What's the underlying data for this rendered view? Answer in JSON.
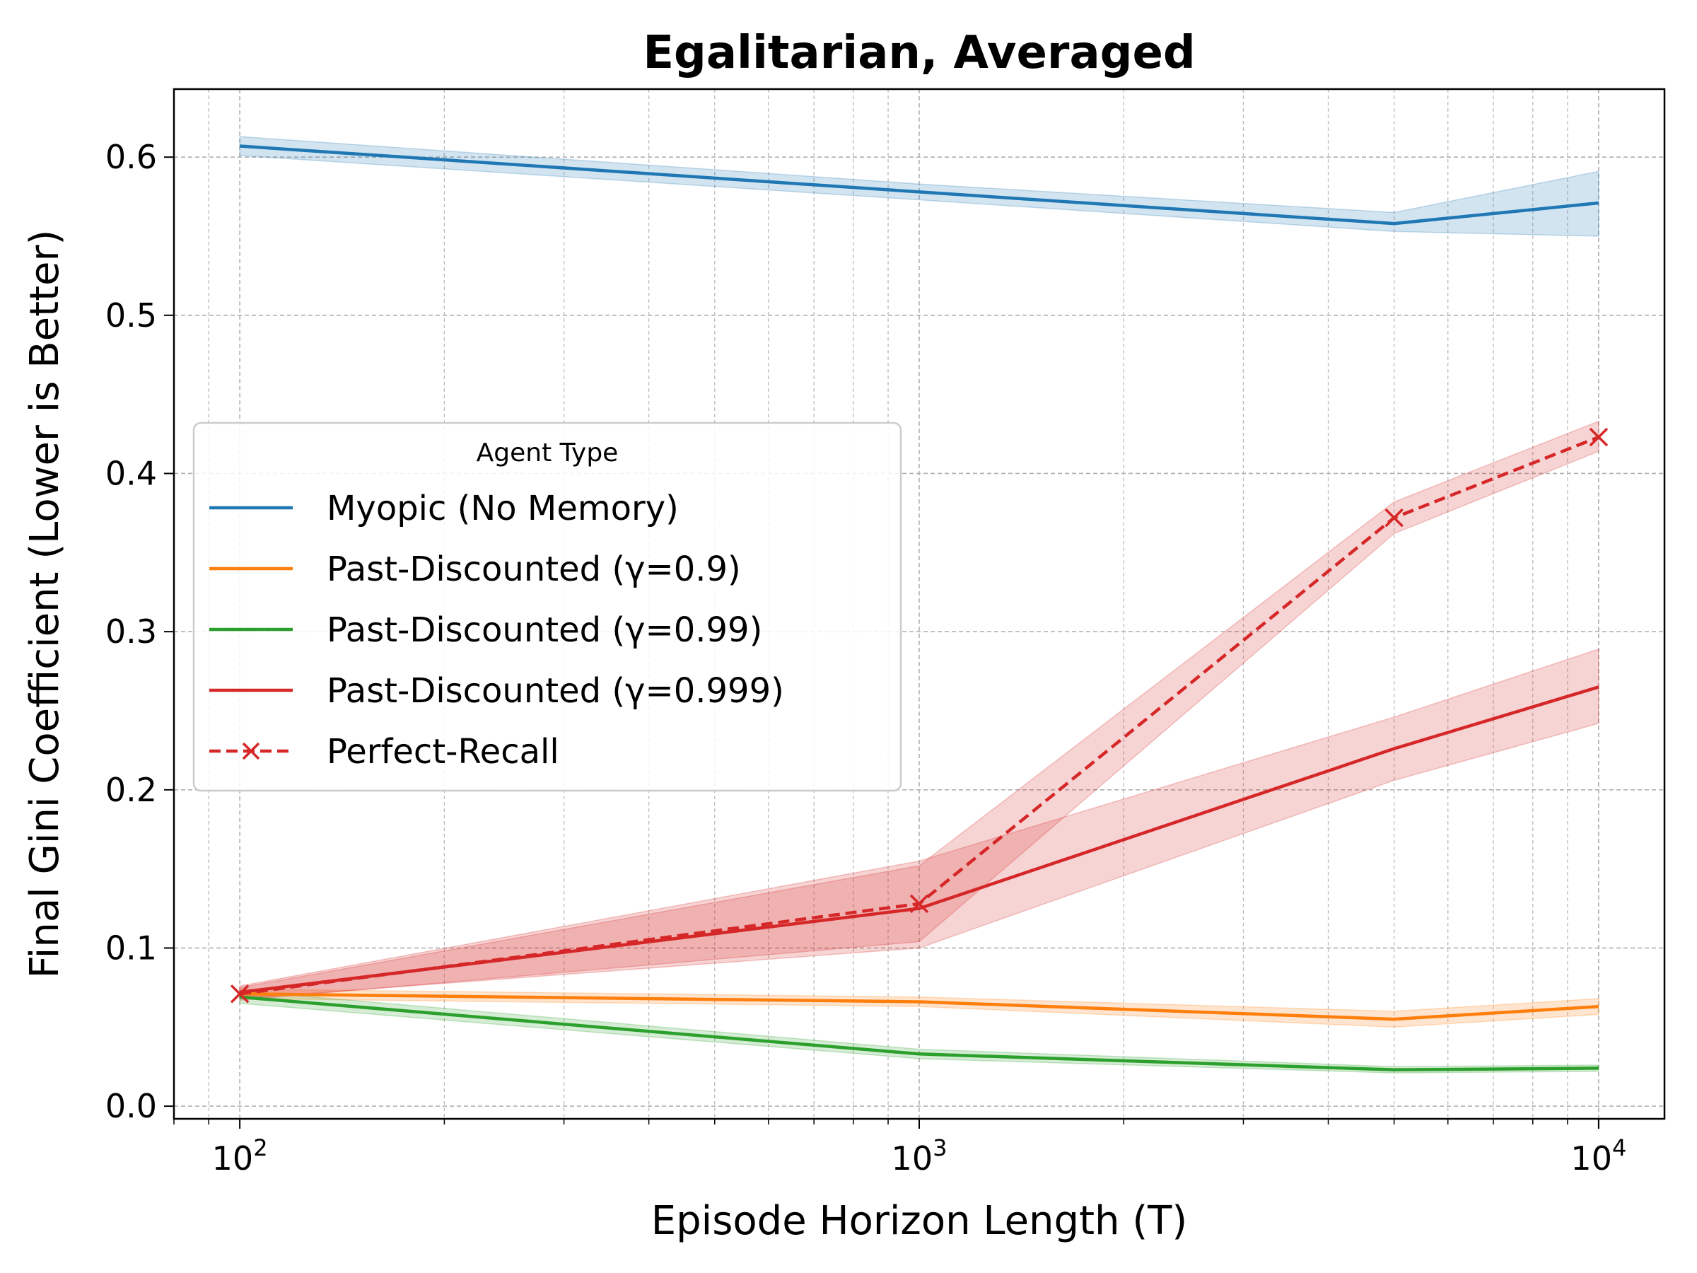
{
  "chart_data": {
    "type": "line",
    "title": "Egalitarian, Averaged",
    "xlabel": "Episode Horizon Length (T)",
    "ylabel": "Final Gini Coefficient (Lower is Better)",
    "xscale": "log",
    "xlim": [
      80,
      12500
    ],
    "ylim": [
      -0.008,
      0.643
    ],
    "x_ticks": [
      {
        "value": 100,
        "base": "10",
        "exp": "2"
      },
      {
        "value": 1000,
        "base": "10",
        "exp": "3"
      },
      {
        "value": 10000,
        "base": "10",
        "exp": "4"
      }
    ],
    "y_ticks": [
      {
        "value": 0.0,
        "label": "0.0"
      },
      {
        "value": 0.1,
        "label": "0.1"
      },
      {
        "value": 0.2,
        "label": "0.2"
      },
      {
        "value": 0.3,
        "label": "0.3"
      },
      {
        "value": 0.4,
        "label": "0.4"
      },
      {
        "value": 0.5,
        "label": "0.5"
      },
      {
        "value": 0.6,
        "label": "0.6"
      }
    ],
    "grid": true,
    "legend": {
      "title": "Agent Type",
      "position": "center-left"
    },
    "x": [
      100,
      1000,
      5000,
      10000
    ],
    "series": [
      {
        "name": "Myopic (No Memory)",
        "color": "#1f77b4",
        "dashed": false,
        "marker": "none",
        "values": [
          0.607,
          0.578,
          0.558,
          0.571
        ],
        "lower": [
          0.601,
          0.573,
          0.553,
          0.55
        ],
        "upper": [
          0.613,
          0.583,
          0.565,
          0.591
        ]
      },
      {
        "name": "Past-Discounted (γ=0.9)",
        "color": "#ff7f0e",
        "dashed": false,
        "marker": "none",
        "values": [
          0.071,
          0.066,
          0.055,
          0.063
        ],
        "lower": [
          0.068,
          0.063,
          0.05,
          0.058
        ],
        "upper": [
          0.074,
          0.069,
          0.06,
          0.068
        ]
      },
      {
        "name": "Past-Discounted (γ=0.99)",
        "color": "#2ca02c",
        "dashed": false,
        "marker": "none",
        "values": [
          0.069,
          0.033,
          0.023,
          0.024
        ],
        "lower": [
          0.065,
          0.03,
          0.021,
          0.022
        ],
        "upper": [
          0.073,
          0.036,
          0.025,
          0.026
        ]
      },
      {
        "name": "Past-Discounted (γ=0.999)",
        "color": "#d62728",
        "dashed": false,
        "marker": "none",
        "values": [
          0.072,
          0.125,
          0.226,
          0.265
        ],
        "lower": [
          0.068,
          0.1,
          0.206,
          0.242
        ],
        "upper": [
          0.076,
          0.155,
          0.246,
          0.289
        ]
      },
      {
        "name": "Perfect-Recall",
        "color": "#d62728",
        "dashed": true,
        "marker": "x",
        "values": [
          0.071,
          0.128,
          0.372,
          0.423
        ],
        "lower": [
          0.067,
          0.104,
          0.362,
          0.414
        ],
        "upper": [
          0.075,
          0.152,
          0.382,
          0.433
        ]
      }
    ]
  }
}
